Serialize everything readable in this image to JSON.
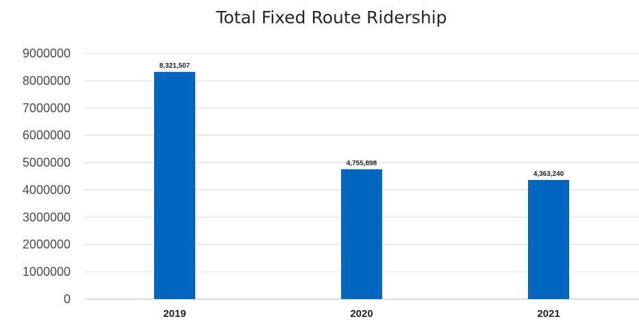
{
  "chart_data": {
    "type": "bar",
    "title": "Total Fixed Route Ridership",
    "xlabel": "",
    "ylabel": "",
    "categories": [
      "2019",
      "2020",
      "2021"
    ],
    "values": [
      8321507,
      4755898,
      4363240
    ],
    "data_labels": [
      "8,321,507",
      "4,755,898",
      "4,363,240"
    ],
    "ylim": [
      0,
      9000000
    ],
    "y_ticks": [
      0,
      1000000,
      2000000,
      3000000,
      4000000,
      5000000,
      6000000,
      7000000,
      8000000,
      9000000
    ],
    "y_tick_labels": [
      "0",
      "1000000",
      "2000000",
      "3000000",
      "4000000",
      "5000000",
      "6000000",
      "7000000",
      "8000000",
      "9000000"
    ],
    "grid": true,
    "legend": "none",
    "bar_color": "#0066bf"
  }
}
